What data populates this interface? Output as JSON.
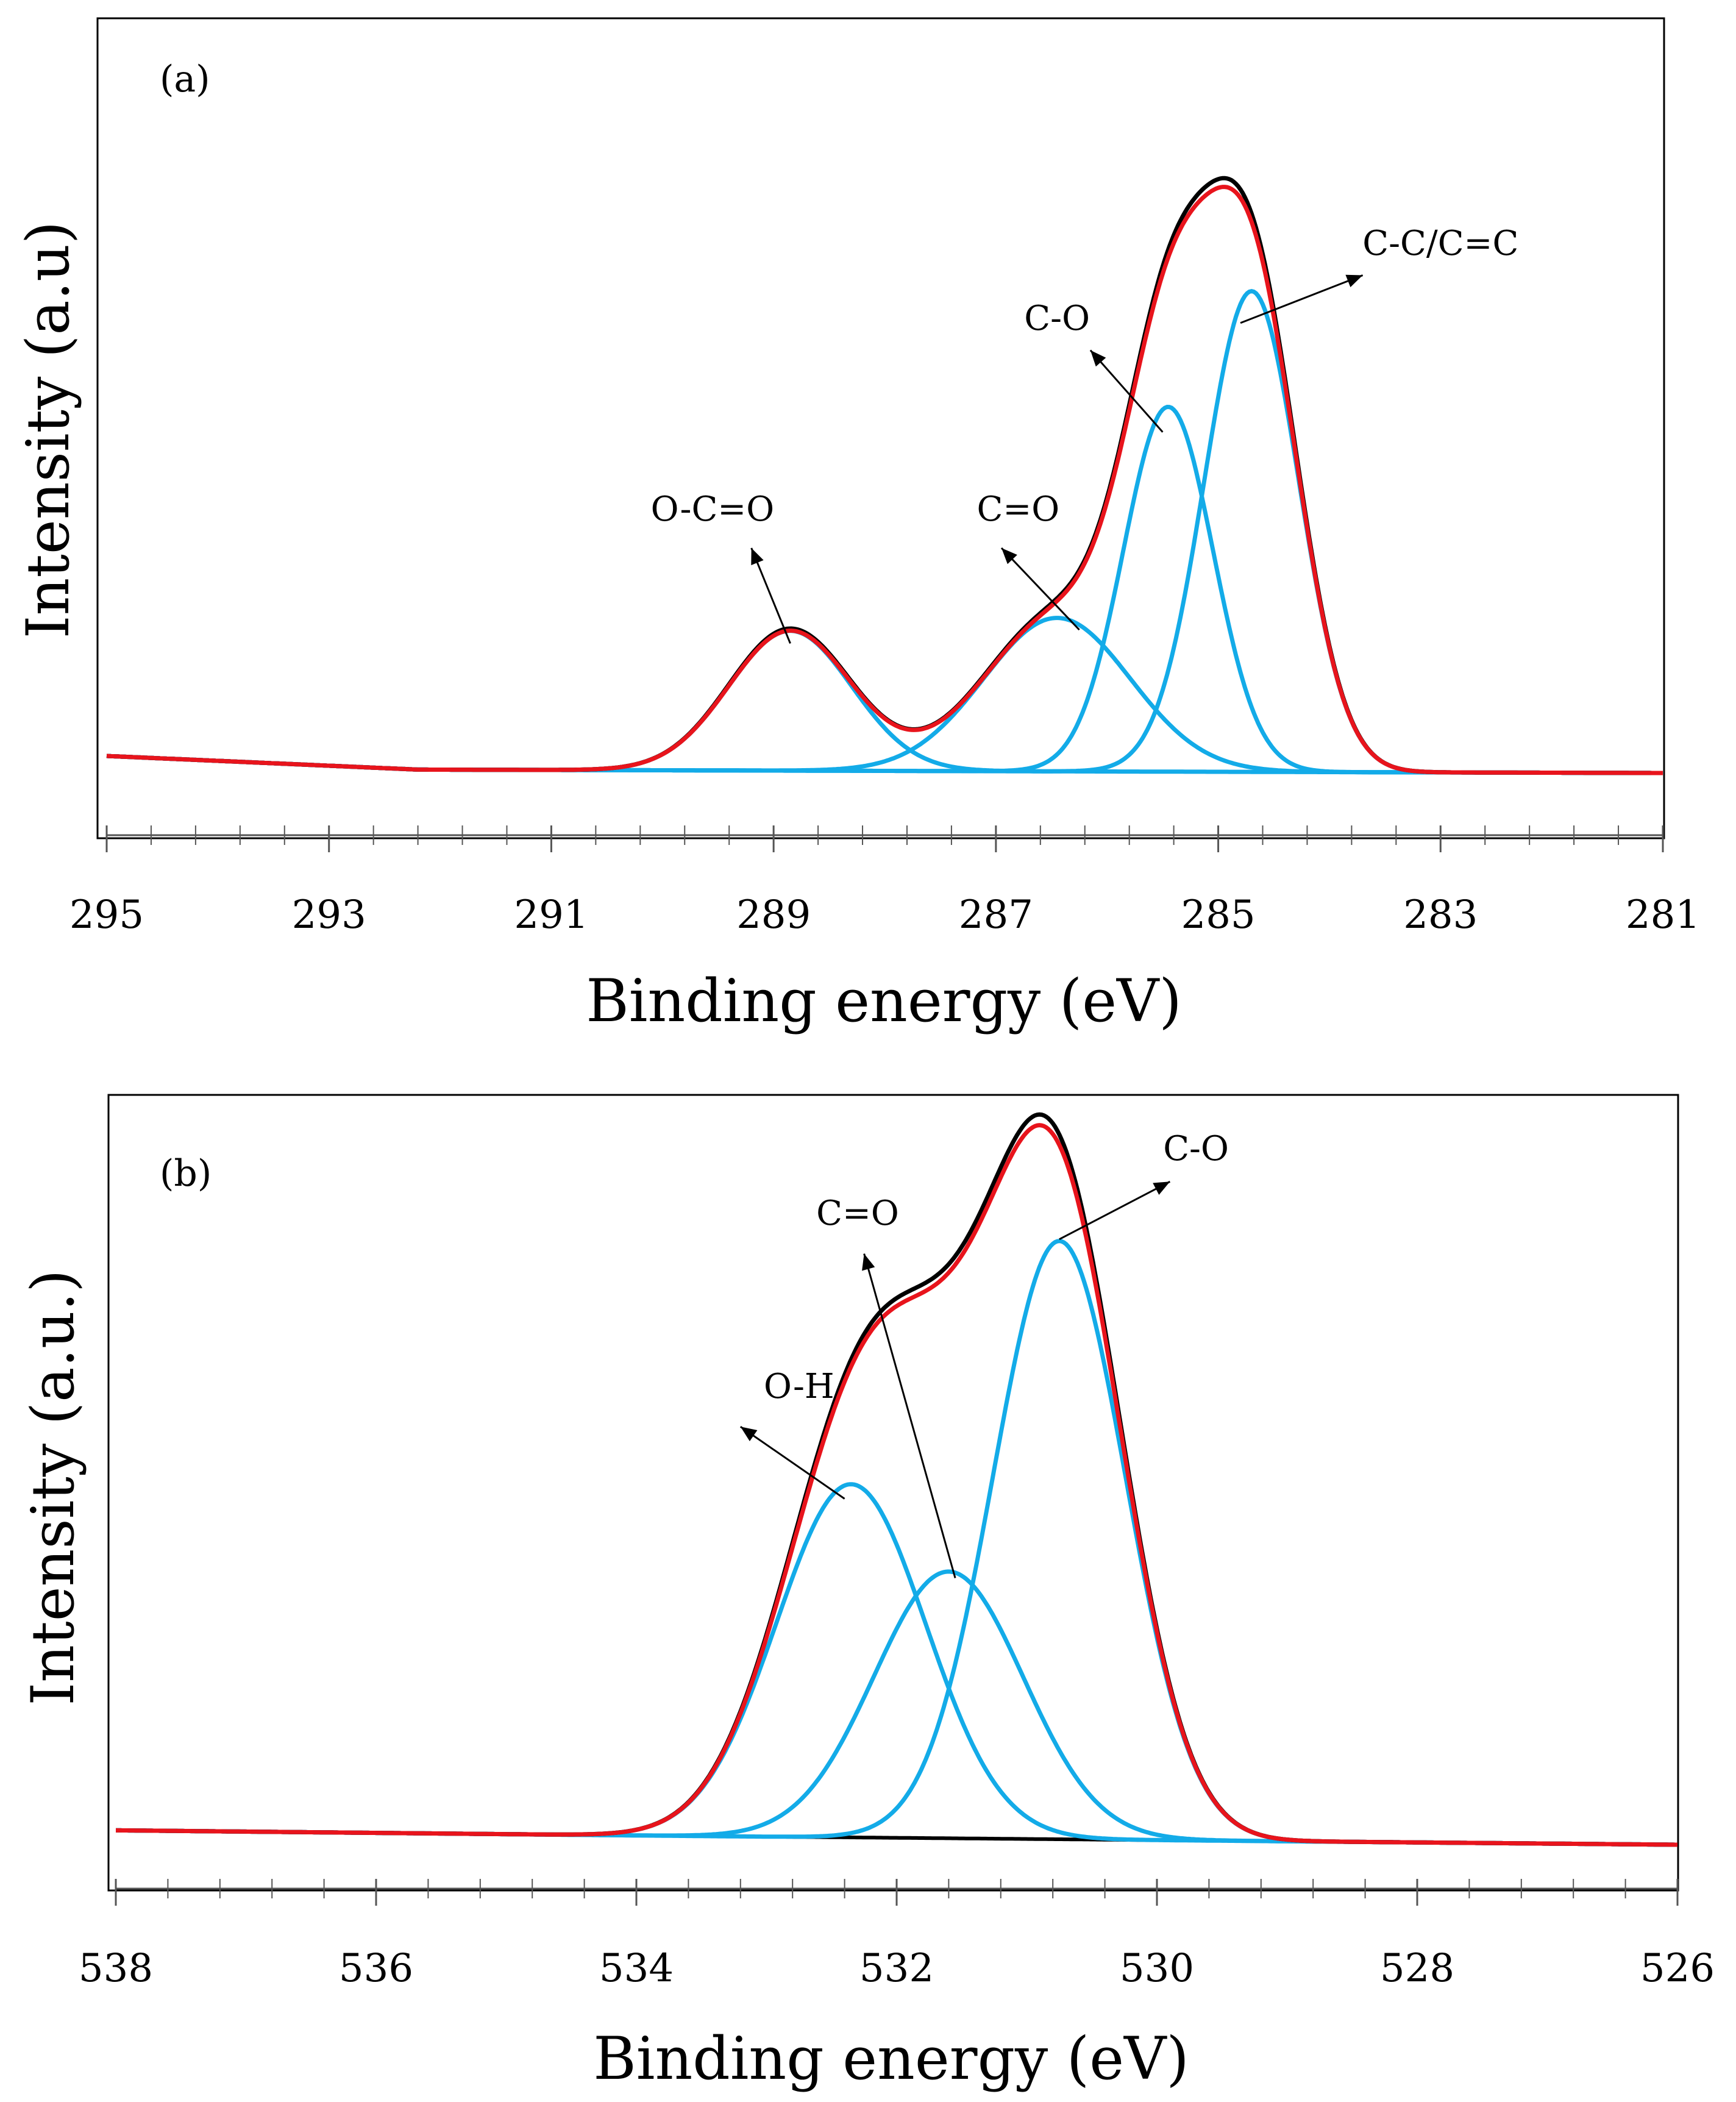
{
  "chart_data": [
    {
      "type": "line",
      "panel_label": "(a)",
      "xlabel": "Binding energy (eV)",
      "ylabel": "Intensity (a.u)",
      "xlim": [
        295,
        281
      ],
      "x_reversed": true,
      "ylim": [
        -0.08,
        1.08
      ],
      "x_ticks": [
        295,
        293,
        291,
        289,
        287,
        285,
        283,
        281
      ],
      "x_tick_labels": [
        "295",
        "293",
        "291",
        "289",
        "287",
        "285",
        "283",
        "281"
      ],
      "minor_tick_step": 0.4,
      "background": {
        "x_start": 295,
        "x_end": 281,
        "y_start": 0.025,
        "y_mid_x": 292.2,
        "y_mid": 0.005,
        "y_end": 0.0
      },
      "peaks": [
        {
          "name": "O-C=O",
          "center": 288.85,
          "height": 0.205,
          "fwhm": 1.3
        },
        {
          "name": "C=O",
          "center": 286.45,
          "height": 0.225,
          "fwhm": 1.55
        },
        {
          "name": "C-O",
          "center": 285.45,
          "height": 0.535,
          "fwhm": 0.95
        },
        {
          "name": "C-C/C=C",
          "center": 284.7,
          "height": 0.705,
          "fwhm": 1.0
        }
      ],
      "annotations": [
        {
          "text": "O-C=O",
          "label_x": 289.55,
          "label_y": 0.37,
          "arrow_from": [
            288.85,
            0.19
          ],
          "arrow_to": [
            289.2,
            0.33
          ]
        },
        {
          "text": "C=O",
          "label_x": 286.8,
          "label_y": 0.37,
          "arrow_from": [
            286.25,
            0.21
          ],
          "arrow_to": [
            286.95,
            0.33
          ]
        },
        {
          "text": "C-O",
          "label_x": 286.45,
          "label_y": 0.65,
          "arrow_from": [
            285.5,
            0.5
          ],
          "arrow_to": [
            286.15,
            0.62
          ]
        },
        {
          "text": "C-C/C=C",
          "label_x": 283.0,
          "label_y": 0.76,
          "arrow_from": [
            284.8,
            0.66
          ],
          "arrow_to": [
            283.7,
            0.73
          ]
        }
      ],
      "colors": {
        "experimental": "#000000",
        "fit": "#e8141c",
        "components": "#13abe8",
        "frame": "#000000"
      }
    },
    {
      "type": "line",
      "panel_label": "(b)",
      "xlabel": "Binding energy (eV)",
      "ylabel": "Intensity (a.u.)",
      "xlim": [
        538,
        526
      ],
      "x_reversed": true,
      "ylim": [
        -0.05,
        1.02
      ],
      "x_ticks": [
        538,
        536,
        534,
        532,
        530,
        528,
        526
      ],
      "x_tick_labels": [
        "538",
        "536",
        "534",
        "532",
        "530",
        "528",
        "526"
      ],
      "minor_tick_step": 0.4,
      "background": {
        "x_start": 538,
        "x_end": 526,
        "y_start": 0.02,
        "y_mid_x": 533.5,
        "y_mid": 0.012,
        "y_end": 0.0
      },
      "peaks": [
        {
          "name": "O-H",
          "center": 532.35,
          "height": 0.49,
          "fwhm": 1.35
        },
        {
          "name": "C=O",
          "center": 531.6,
          "height": 0.37,
          "fwhm": 1.35
        },
        {
          "name": "C-O",
          "center": 530.75,
          "height": 0.83,
          "fwhm": 1.2
        }
      ],
      "annotations": [
        {
          "text": "O-H",
          "label_x": 532.75,
          "label_y": 0.62,
          "arrow_from": [
            532.4,
            0.48
          ],
          "arrow_to": [
            533.2,
            0.58
          ]
        },
        {
          "text": "C=O",
          "label_x": 532.3,
          "label_y": 0.86,
          "arrow_from": [
            531.55,
            0.37
          ],
          "arrow_to": [
            532.25,
            0.82
          ]
        },
        {
          "text": "C-O",
          "label_x": 529.7,
          "label_y": 0.95,
          "arrow_from": [
            530.75,
            0.84
          ],
          "arrow_to": [
            529.9,
            0.92
          ]
        }
      ],
      "colors": {
        "experimental": "#000000",
        "fit": "#e8141c",
        "components": "#13abe8",
        "frame": "#000000"
      }
    }
  ]
}
